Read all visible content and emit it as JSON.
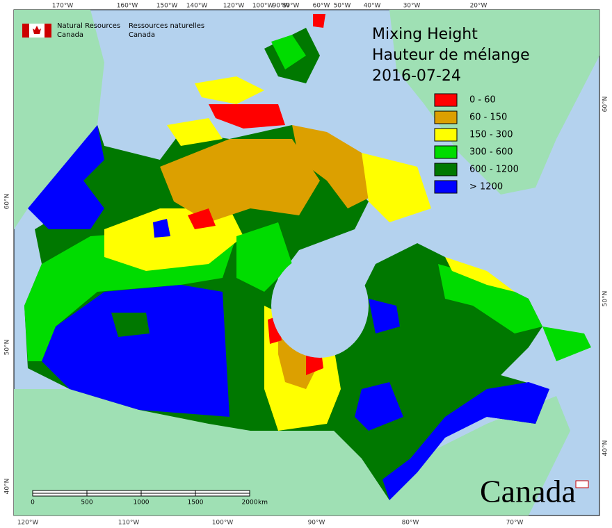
{
  "agency": {
    "en_line1": "Natural Resources",
    "en_line2": "Canada",
    "fr_line1": "Ressources naturelles",
    "fr_line2": "Canada"
  },
  "title": {
    "line1": "Mixing Height",
    "line2": "Hauteur de mélange",
    "date": "2016-07-24"
  },
  "legend": {
    "items": [
      {
        "label": "0 - 60",
        "color": "#ff0000"
      },
      {
        "label": "60 - 150",
        "color": "#dca000"
      },
      {
        "label": "150 - 300",
        "color": "#ffff00"
      },
      {
        "label": "300 - 600",
        "color": "#00dc00"
      },
      {
        "label": "600 - 1200",
        "color": "#007800"
      },
      {
        "label": "> 1200",
        "color": "#0000ff"
      }
    ]
  },
  "graticule": {
    "top": [
      "170°W",
      "160°W",
      "150°W",
      "140°W",
      "120°W",
      "100°W",
      "90°W",
      "80°W",
      "60°W",
      "50°W",
      "40°W",
      "30°W",
      "20°W"
    ],
    "bottom": [
      "120°W",
      "110°W",
      "100°W",
      "90°W",
      "80°W",
      "70°W"
    ],
    "left": [
      "60°N",
      "50°N",
      "40°N"
    ],
    "right": [
      "60°N",
      "50°N",
      "40°N"
    ]
  },
  "scale_bar": {
    "labels": [
      "0",
      "500",
      "1000",
      "1500",
      "2000"
    ],
    "unit": "km"
  },
  "wordmark": "Canada"
}
